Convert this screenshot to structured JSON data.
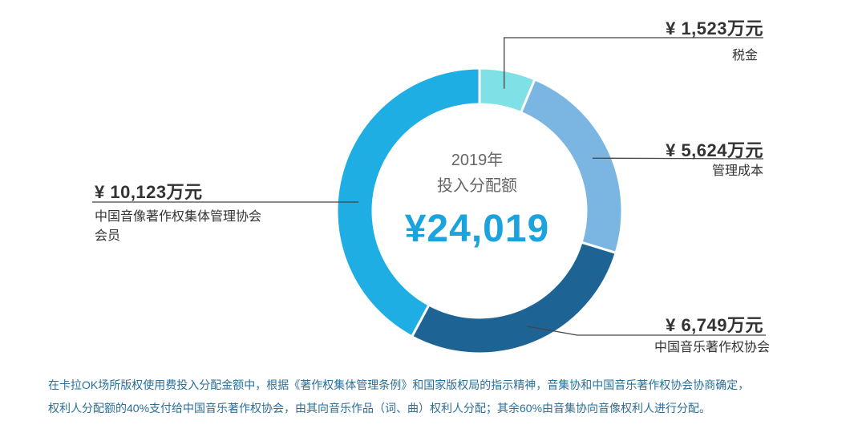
{
  "center": {
    "year": "2019年",
    "subtitle": "投入分配额",
    "total": "¥24,019"
  },
  "chart_data": {
    "type": "pie",
    "donut": true,
    "total": 24019,
    "unit": "万元",
    "slices": [
      {
        "label": "税金",
        "value": 1523,
        "amount_text": "¥ 1,523万元",
        "color": "#7fe0e6"
      },
      {
        "label": "管理成本",
        "value": 5624,
        "amount_text": "¥ 5,624万元",
        "color": "#7bb6e3"
      },
      {
        "label": "中国音乐著作权协会",
        "value": 6749,
        "amount_text": "¥ 6,749万元",
        "color": "#1d6494"
      },
      {
        "label": "中国音像著作权集体管理协会会员",
        "label_lines": [
          "中国音像著作权集体管理协会",
          "会员"
        ],
        "value": 10123,
        "amount_text": "¥ 10,123万元",
        "color": "#1eaee3"
      }
    ]
  },
  "notes": [
    "在卡拉OK场所版权使用费投入分配金额中，根据《著作权集体管理条例》和国家版权局的指示精神，音集协和中国音乐著作权协会协商确定，",
    "权利人分配额的40%支付给中国音乐著作权协会，由其向音乐作品（词、曲）权利人分配；其余60%由音集协向音像权利人进行分配。"
  ]
}
